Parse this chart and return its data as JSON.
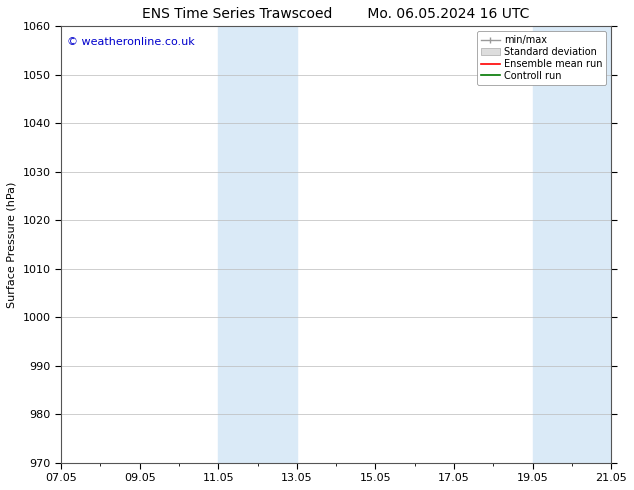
{
  "title_left": "ENS Time Series Trawscoed",
  "title_right": "Mo. 06.05.2024 16 UTC",
  "ylabel": "Surface Pressure (hPa)",
  "ylim": [
    970,
    1060
  ],
  "yticks": [
    970,
    980,
    990,
    1000,
    1010,
    1020,
    1030,
    1040,
    1050,
    1060
  ],
  "xlim_start": 0,
  "xlim_end": 14,
  "xtick_labels": [
    "07.05",
    "09.05",
    "11.05",
    "13.05",
    "15.05",
    "17.05",
    "19.05",
    "21.05"
  ],
  "xtick_positions": [
    0,
    2,
    4,
    6,
    8,
    10,
    12,
    14
  ],
  "shade_regions": [
    {
      "xmin": 4.0,
      "xmax": 6.0
    },
    {
      "xmin": 12.0,
      "xmax": 14.0
    }
  ],
  "shade_color": "#daeaf7",
  "shade_alpha": 1.0,
  "watermark": "© weatheronline.co.uk",
  "watermark_color": "#0000cc",
  "watermark_fontsize": 8,
  "legend_entries": [
    "min/max",
    "Standard deviation",
    "Ensemble mean run",
    "Controll run"
  ],
  "legend_colors": [
    "#999999",
    "#cccccc",
    "#ff0000",
    "#007700"
  ],
  "background_color": "#ffffff",
  "grid_color": "#bbbbbb",
  "title_fontsize": 10,
  "axis_fontsize": 8,
  "tick_fontsize": 8
}
